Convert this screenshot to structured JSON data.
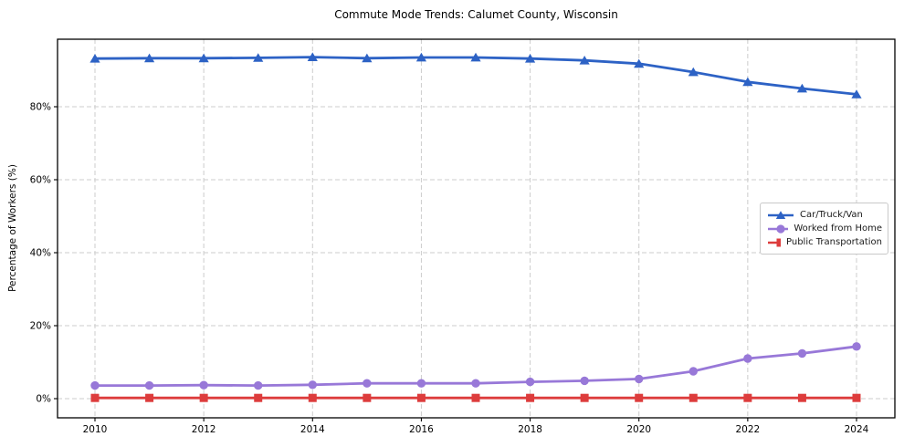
{
  "title": "Commute Mode Trends: Calumet County, Wisconsin",
  "ylabel": "Percentage of Workers (%)",
  "colors": {
    "car_line": "#2d62c5",
    "home_line": "#9878d8",
    "transit_line": "#dd3c3c",
    "grid": "#cccccc",
    "spine": "#000000",
    "background": "#ffffff",
    "legend_border": "#c9c9c9"
  },
  "chart_data": {
    "type": "line",
    "title": "Commute Mode Trends: Calumet County, Wisconsin",
    "xlabel": "",
    "ylabel": "Percentage of Workers (%)",
    "x": [
      2010,
      2011,
      2012,
      2013,
      2014,
      2015,
      2016,
      2017,
      2018,
      2019,
      2020,
      2021,
      2022,
      2023,
      2024
    ],
    "x_tick_labels": [
      "2010",
      "2012",
      "2014",
      "2016",
      "2018",
      "2020",
      "2022",
      "2024"
    ],
    "x_tick_values": [
      2010,
      2012,
      2014,
      2016,
      2018,
      2020,
      2022,
      2024
    ],
    "y_tick_labels": [
      "0%",
      "20%",
      "40%",
      "60%",
      "80%"
    ],
    "y_tick_values": [
      0,
      20,
      40,
      60,
      80
    ],
    "ylim": [
      -5.3,
      98.5
    ],
    "grid": true,
    "grid_style": "dashed",
    "legend_position": "center right",
    "series": [
      {
        "name": "Car/Truck/Van",
        "color": "#2d62c5",
        "marker": "triangle",
        "values": [
          93.2,
          93.3,
          93.3,
          93.4,
          93.6,
          93.3,
          93.5,
          93.5,
          93.2,
          92.7,
          91.8,
          89.5,
          86.8,
          85.0,
          83.4
        ]
      },
      {
        "name": "Worked from Home",
        "color": "#9878d8",
        "marker": "circle",
        "values": [
          3.6,
          3.6,
          3.7,
          3.6,
          3.8,
          4.2,
          4.2,
          4.2,
          4.6,
          4.9,
          5.4,
          7.5,
          11.0,
          12.4,
          14.3
        ]
      },
      {
        "name": "Public Transportation",
        "color": "#dd3c3c",
        "marker": "square",
        "values": [
          0.2,
          0.2,
          0.2,
          0.2,
          0.2,
          0.2,
          0.2,
          0.2,
          0.2,
          0.2,
          0.2,
          0.2,
          0.2,
          0.2,
          0.2
        ]
      }
    ]
  }
}
